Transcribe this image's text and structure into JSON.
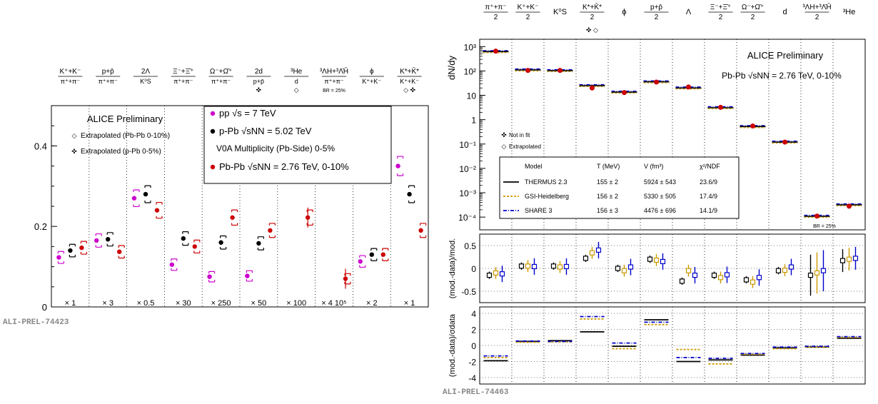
{
  "colors": {
    "pp": "#cc00cc",
    "ppb": "#000000",
    "pbpb": "#cc0000",
    "thermus": "#000000",
    "gsi": "#cc9900",
    "share": "#0000cc",
    "model_point": "#0000cc"
  },
  "chart_data": [
    {
      "type": "scatter",
      "ylim": [
        0,
        0.5
      ],
      "yticks": [
        "0",
        "0.2",
        "0.4"
      ],
      "column_headers": [
        {
          "num": "K⁺+K⁻",
          "den": "π⁺+π⁻",
          "sub": ""
        },
        {
          "num": "p+p̄",
          "den": "π⁺+π⁻",
          "sub": ""
        },
        {
          "num": "2Λ",
          "den": "K⁰S",
          "sub": ""
        },
        {
          "num": "Ξ⁻+Ξ̄⁺",
          "den": "π⁺+π⁻",
          "sub": ""
        },
        {
          "num": "Ω⁻+Ω̄⁺",
          "den": "π⁺+π⁻",
          "sub": ""
        },
        {
          "num": "2d",
          "den": "p+p̄",
          "sub": "✜"
        },
        {
          "num": "³He",
          "den": "d",
          "sub": "◇"
        },
        {
          "num": "³ΛH+³Λ̄H̄",
          "den": "π⁺+π⁻",
          "sub": "BR = 25%"
        },
        {
          "num": "ϕ",
          "den": "K⁺+K⁻",
          "sub": ""
        },
        {
          "num": "K*+K̄*",
          "den": "K⁺+K⁻",
          "sub": "◇ ✜"
        }
      ],
      "scale_factors": [
        "× 1",
        "× 3",
        "× 0.5",
        "× 30",
        "× 250",
        "× 50",
        "× 100",
        "× 4 10⁵",
        "× 2",
        "× 1"
      ],
      "series": [
        {
          "name": "pp √s = 7 TeV",
          "values": [
            0.123,
            0.165,
            0.27,
            0.105,
            0.075,
            0.077,
            null,
            null,
            0.113,
            0.35
          ]
        },
        {
          "name": "p-Pb √sNN = 5.02 TeV",
          "values": [
            0.14,
            0.168,
            0.28,
            0.17,
            0.16,
            0.158,
            null,
            null,
            0.13,
            0.28
          ]
        },
        {
          "name": "Pb-Pb √sNN = 2.76 TeV, 0-10%",
          "values": [
            0.147,
            0.137,
            0.24,
            0.15,
            0.222,
            0.19,
            0.222,
            0.07,
            0.13,
            0.19
          ]
        }
      ],
      "legend_title": "ALICE Preliminary",
      "notes": [
        "Extrapolated (Pb-Pb 0-10%)",
        "Extrapolated (p-Pb 0-5%)"
      ],
      "legend_entries": [
        "pp √s = 7 TeV",
        "p-Pb √sNN = 5.02 TeV",
        "V0A Multiplicity (Pb-Side) 0-5%",
        "Pb-Pb √sNN = 2.76 TeV, 0-10%"
      ],
      "label": "ALI-PREL-74423"
    },
    {
      "type": "scatter",
      "scale": "log",
      "ylabel": "dN/dy",
      "ylim": [
        3e-05,
        2000
      ],
      "yticks": [
        "10³",
        "10²",
        "10",
        "1",
        "10⁻¹",
        "10⁻²",
        "10⁻³",
        "10⁻⁴"
      ],
      "particles": [
        {
          "num": "π⁺+π⁻",
          "den": "2",
          "sub": ""
        },
        {
          "num": "K⁺+K⁻",
          "den": "2",
          "sub": ""
        },
        {
          "num": "K⁰S",
          "den": "",
          "sub": ""
        },
        {
          "num": "K*+K̄*",
          "den": "2",
          "sub": "✜ ◇"
        },
        {
          "num": "ϕ",
          "den": "",
          "sub": ""
        },
        {
          "num": "p+p̄",
          "den": "2",
          "sub": ""
        },
        {
          "num": "Λ",
          "den": "",
          "sub": ""
        },
        {
          "num": "Ξ⁻+Ξ̄⁺",
          "den": "2",
          "sub": ""
        },
        {
          "num": "Ω⁻+Ω̄⁺",
          "den": "2",
          "sub": ""
        },
        {
          "num": "d",
          "den": "",
          "sub": ""
        },
        {
          "num": "³ΛH+³Λ̄H̄",
          "den": "2",
          "sub": ""
        },
        {
          "num": "³He",
          "den": "",
          "sub": ""
        }
      ],
      "data_values": [
        650,
        105,
        105,
        20,
        13,
        35,
        22,
        3.2,
        0.55,
        0.12,
        0.00011,
        0.00028
      ],
      "model_values": [
        620,
        110,
        103,
        25,
        13.5,
        36,
        20,
        3.1,
        0.52,
        0.12,
        0.000108,
        0.00032
      ],
      "legend_title": "ALICE Preliminary",
      "system": "Pb-Pb √sNN = 2.76 TeV, 0-10%",
      "notes": [
        "Not in fit",
        "Extrapolated"
      ],
      "br_label": "BR = 25%",
      "table_header": [
        "Model",
        "T (MeV)",
        "V (fm³)",
        "χ²/NDF"
      ],
      "models": [
        {
          "name": "THERMUS 2.3",
          "T": "155 ± 2",
          "V": "5924 ± 543",
          "chi2": "23.6/9"
        },
        {
          "name": "GSI-Heidelberg",
          "T": "156 ± 2",
          "V": "5330 ± 505",
          "chi2": "17.4/9"
        },
        {
          "name": "SHARE 3",
          "T": "156 ± 3",
          "V": "4476 ± 696",
          "chi2": "14.1/9"
        }
      ],
      "label": "ALI-PREL-74463"
    },
    {
      "type": "scatter",
      "ylabel": "(mod.-data)/mod.",
      "ylim": [
        -0.75,
        0.75
      ],
      "yticks": [
        "0.5",
        "0",
        "-0.5"
      ],
      "series": [
        {
          "name": "THERMUS 2.3",
          "values": [
            -0.15,
            0.05,
            0.05,
            0.22,
            0.0,
            0.2,
            -0.28,
            -0.15,
            -0.25,
            -0.05,
            -0.15,
            0.17
          ]
        },
        {
          "name": "GSI-Heidelberg",
          "values": [
            -0.1,
            0.05,
            0.03,
            0.34,
            -0.05,
            0.18,
            -0.05,
            -0.2,
            -0.3,
            -0.04,
            -0.1,
            0.2
          ]
        },
        {
          "name": "SHARE 3",
          "values": [
            -0.12,
            0.04,
            0.04,
            0.4,
            0.03,
            0.15,
            -0.15,
            -0.14,
            -0.2,
            0.03,
            -0.05,
            0.22
          ]
        }
      ]
    },
    {
      "type": "scatter",
      "ylabel": "(mod.-data)/σdata",
      "ylim": [
        -4.8,
        4.8
      ],
      "yticks": [
        "4",
        "2",
        "0",
        "-2",
        "-4"
      ],
      "series": [
        {
          "name": "THERMUS 2.3",
          "values": [
            -1.9,
            0.5,
            0.6,
            1.7,
            -0.1,
            3.2,
            -2.0,
            -1.8,
            -1.2,
            -0.3,
            -0.2,
            0.9
          ]
        },
        {
          "name": "GSI-Heidelberg",
          "values": [
            -1.5,
            0.4,
            0.45,
            3.3,
            -0.4,
            2.6,
            -0.5,
            -2.3,
            -1.1,
            -0.4,
            -0.2,
            1.0
          ]
        },
        {
          "name": "SHARE 3",
          "values": [
            -1.3,
            0.55,
            0.5,
            3.6,
            0.3,
            2.9,
            -1.5,
            -1.6,
            -1.0,
            -0.2,
            -0.1,
            1.1
          ]
        }
      ]
    }
  ]
}
